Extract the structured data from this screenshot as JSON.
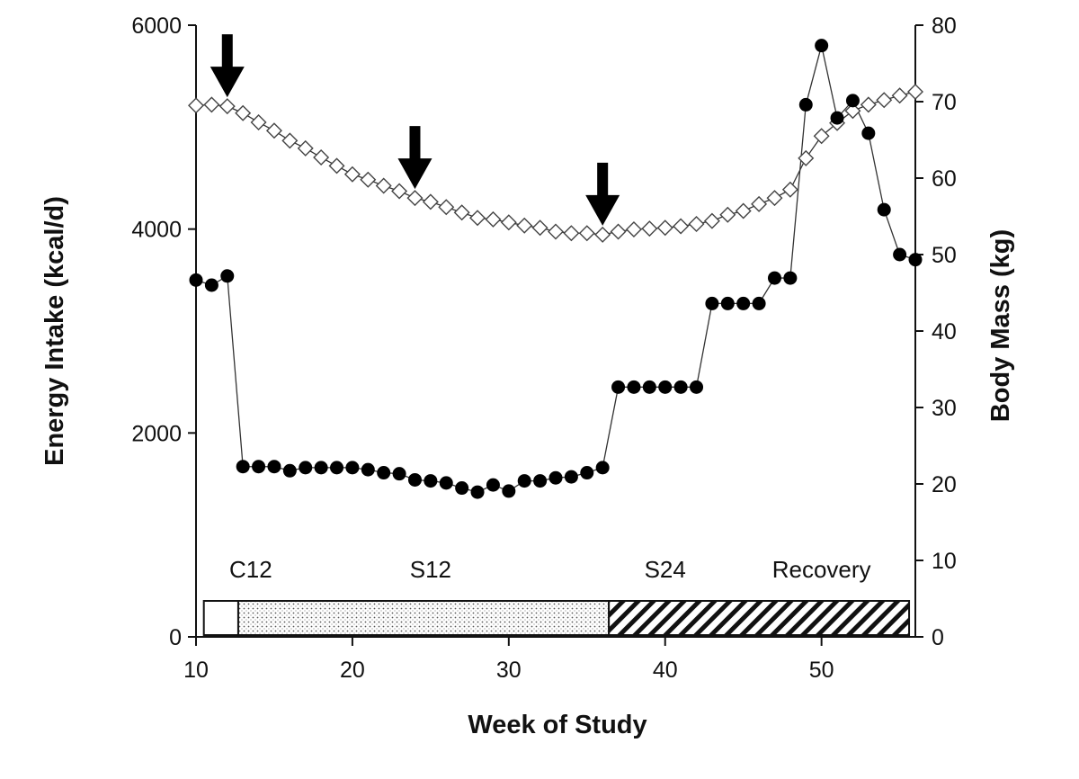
{
  "chart_data": {
    "type": "line",
    "xlabel": "Week of Study",
    "ylabel_left": "Energy Intake (kcal/d)",
    "ylabel_right": "Body Mass (kg)",
    "xlim": [
      10,
      56
    ],
    "ylim_left": [
      0,
      6000
    ],
    "ylim_right": [
      0,
      80
    ],
    "x_ticks": [
      10,
      20,
      30,
      40,
      50
    ],
    "y_left_ticks": [
      0,
      2000,
      4000,
      6000
    ],
    "y_right_ticks": [
      0,
      10,
      20,
      30,
      40,
      50,
      60,
      70,
      80
    ],
    "grid": false,
    "series": [
      {
        "axis": "left",
        "marker": "filled-circle",
        "color": "#000000",
        "points": [
          [
            10,
            3500
          ],
          [
            11,
            3450
          ],
          [
            12,
            3540
          ],
          [
            13,
            1670
          ],
          [
            14,
            1670
          ],
          [
            15,
            1670
          ],
          [
            16,
            1630
          ],
          [
            17,
            1660
          ],
          [
            18,
            1660
          ],
          [
            19,
            1660
          ],
          [
            20,
            1660
          ],
          [
            21,
            1640
          ],
          [
            22,
            1610
          ],
          [
            23,
            1600
          ],
          [
            24,
            1540
          ],
          [
            25,
            1530
          ],
          [
            26,
            1510
          ],
          [
            27,
            1460
          ],
          [
            28,
            1420
          ],
          [
            29,
            1490
          ],
          [
            30,
            1430
          ],
          [
            31,
            1530
          ],
          [
            32,
            1530
          ],
          [
            33,
            1560
          ],
          [
            34,
            1570
          ],
          [
            35,
            1610
          ],
          [
            36,
            1660
          ],
          [
            37,
            2450
          ],
          [
            38,
            2450
          ],
          [
            39,
            2450
          ],
          [
            40,
            2450
          ],
          [
            41,
            2450
          ],
          [
            42,
            2450
          ],
          [
            43,
            3270
          ],
          [
            44,
            3270
          ],
          [
            45,
            3270
          ],
          [
            46,
            3270
          ],
          [
            47,
            3520
          ],
          [
            48,
            3520
          ],
          [
            49,
            5220
          ],
          [
            50,
            5800
          ],
          [
            51,
            5090
          ],
          [
            52,
            5260
          ],
          [
            53,
            4940
          ],
          [
            54,
            4190
          ],
          [
            55,
            3750
          ],
          [
            56,
            3700
          ]
        ]
      },
      {
        "axis": "right",
        "marker": "open-diamond",
        "color": "#000000",
        "points": [
          [
            10,
            69.5
          ],
          [
            11,
            69.6
          ],
          [
            12,
            69.4
          ],
          [
            13,
            68.5
          ],
          [
            14,
            67.3
          ],
          [
            15,
            66.2
          ],
          [
            16,
            64.9
          ],
          [
            17,
            63.9
          ],
          [
            18,
            62.7
          ],
          [
            19,
            61.6
          ],
          [
            20,
            60.5
          ],
          [
            21,
            59.8
          ],
          [
            22,
            59.0
          ],
          [
            23,
            58.3
          ],
          [
            24,
            57.4
          ],
          [
            25,
            56.9
          ],
          [
            26,
            56.2
          ],
          [
            27,
            55.5
          ],
          [
            28,
            54.8
          ],
          [
            29,
            54.6
          ],
          [
            30,
            54.2
          ],
          [
            31,
            53.8
          ],
          [
            32,
            53.5
          ],
          [
            33,
            53.0
          ],
          [
            34,
            52.8
          ],
          [
            35,
            52.8
          ],
          [
            36,
            52.6
          ],
          [
            37,
            53.0
          ],
          [
            38,
            53.3
          ],
          [
            39,
            53.4
          ],
          [
            40,
            53.5
          ],
          [
            41,
            53.7
          ],
          [
            42,
            54.0
          ],
          [
            43,
            54.4
          ],
          [
            44,
            55.2
          ],
          [
            45,
            55.7
          ],
          [
            46,
            56.6
          ],
          [
            47,
            57.4
          ],
          [
            48,
            58.5
          ],
          [
            49,
            62.6
          ],
          [
            50,
            65.5
          ],
          [
            51,
            67.2
          ],
          [
            52,
            68.8
          ],
          [
            53,
            69.6
          ],
          [
            54,
            70.2
          ],
          [
            55,
            70.8
          ],
          [
            56,
            71.3
          ]
        ]
      }
    ],
    "arrows_at_week": [
      12,
      24,
      36
    ],
    "phases": [
      {
        "label": "C12",
        "label_x": 13.5,
        "start": 10.5,
        "end": 12.7,
        "pattern": "blank"
      },
      {
        "label": "S12",
        "label_x": 25,
        "start": 12.7,
        "end": 36.4,
        "pattern": "dotted"
      },
      {
        "label": "S24",
        "label_x": 40,
        "start": 36.4,
        "end": 55.6,
        "pattern": "hatched"
      },
      {
        "label": "Recovery",
        "label_x": 50,
        "start": null,
        "end": null,
        "pattern": "none"
      }
    ]
  }
}
